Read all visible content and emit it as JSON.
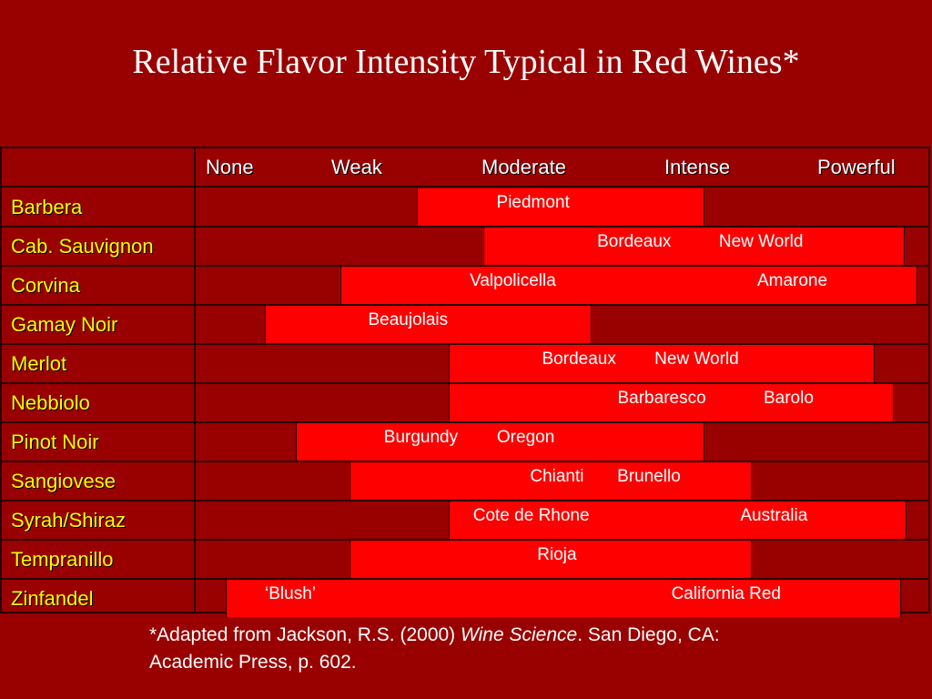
{
  "title": "Relative Flavor Intensity Typical in Red Wines*",
  "scale_labels": [
    "None",
    "Weak",
    "Moderate",
    "Intense",
    "Powerful"
  ],
  "intensity_scale": {
    "min": 0,
    "max": 4,
    "levels": [
      "None",
      "Weak",
      "Moderate",
      "Intense",
      "Powerful"
    ]
  },
  "wines": [
    {
      "name": "Barbera",
      "start": 1.21,
      "end": 2.77,
      "labels": [
        {
          "text": "Piedmont",
          "at": 1.84
        }
      ]
    },
    {
      "name": "Cab. Sauvignon",
      "start": 1.57,
      "end": 3.86,
      "labels": [
        {
          "text": "Bordeaux",
          "at": 2.39
        },
        {
          "text": "New World",
          "at": 3.08
        }
      ]
    },
    {
      "name": "Corvina",
      "start": 0.79,
      "end": 3.93,
      "labels": [
        {
          "text": "Valpolicella",
          "at": 1.73
        },
        {
          "text": "Amarone",
          "at": 3.25
        }
      ]
    },
    {
      "name": "Gamay Noir",
      "start": 0.38,
      "end": 2.16,
      "labels": [
        {
          "text": "Beaujolais",
          "at": 1.16
        }
      ]
    },
    {
      "name": "Merlot",
      "start": 1.38,
      "end": 3.7,
      "labels": [
        {
          "text": "Bordeaux",
          "at": 2.09
        },
        {
          "text": "New World",
          "at": 2.73
        }
      ]
    },
    {
      "name": "Nebbiolo",
      "start": 1.38,
      "end": 3.8,
      "labels": [
        {
          "text": "Barbaresco",
          "at": 2.54
        },
        {
          "text": "Barolo",
          "at": 3.23
        }
      ]
    },
    {
      "name": "Pinot Noir",
      "start": 0.55,
      "end": 2.77,
      "labels": [
        {
          "text": "Burgundy",
          "at": 1.23
        },
        {
          "text": "Oregon",
          "at": 1.8
        }
      ]
    },
    {
      "name": "Sangiovese",
      "start": 0.84,
      "end": 3.03,
      "labels": [
        {
          "text": "Chianti",
          "at": 1.97
        },
        {
          "text": "Brunello",
          "at": 2.47
        }
      ]
    },
    {
      "name": "Syrah/Shiraz",
      "start": 1.38,
      "end": 3.87,
      "labels": [
        {
          "text": "Cote de Rhone",
          "at": 1.83
        },
        {
          "text": "Australia",
          "at": 3.15
        }
      ]
    },
    {
      "name": "Tempranillo",
      "start": 0.84,
      "end": 3.03,
      "labels": [
        {
          "text": "Rioja",
          "at": 1.97
        }
      ]
    },
    {
      "name": "Zinfandel",
      "start": 0.17,
      "end": 3.84,
      "labels": [
        {
          "text": "‘Blush’",
          "at": 0.52
        },
        {
          "text": "California Red",
          "at": 2.89
        }
      ]
    }
  ],
  "footnote": {
    "prefix": "*Adapted from Jackson, R.S. (2000) ",
    "book": "Wine Science",
    "suffix": ". San Diego, CA: Academic Press, p. 602."
  },
  "colors": {
    "background": "#990000",
    "bar": "#ff0000",
    "wine_name": "#ffff00",
    "grid": "#2a0000",
    "text": "#ffffff"
  }
}
